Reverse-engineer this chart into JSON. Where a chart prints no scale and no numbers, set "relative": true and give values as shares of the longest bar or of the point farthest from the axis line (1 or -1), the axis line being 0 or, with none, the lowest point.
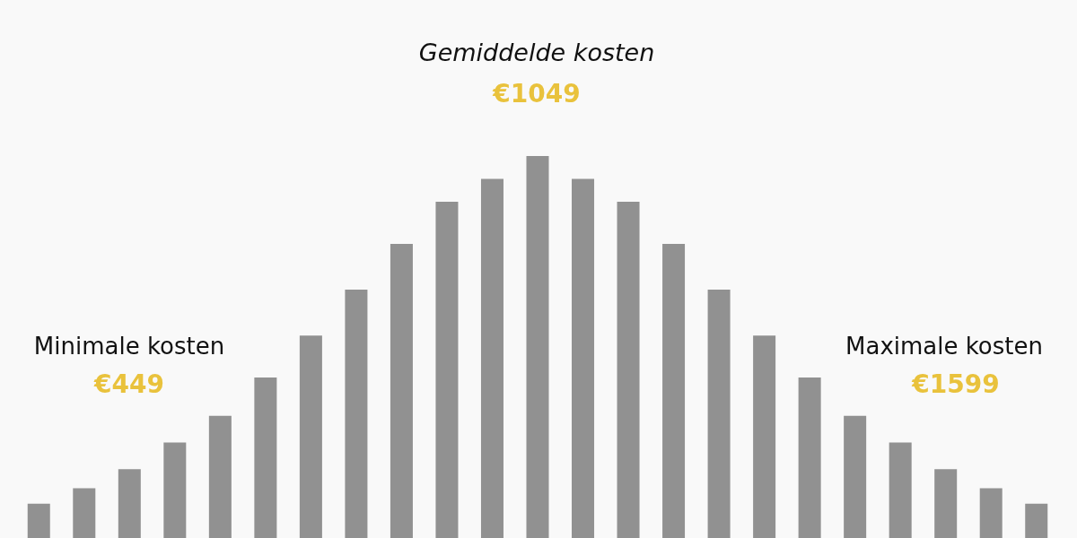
{
  "chart_data": {
    "type": "bar",
    "relative": true,
    "categories": [
      null,
      null,
      null,
      null,
      null,
      null,
      null,
      null,
      null,
      null,
      null,
      null,
      null,
      null,
      null,
      null,
      null,
      null,
      null,
      null,
      null,
      null,
      null
    ],
    "values": [
      0.09,
      0.13,
      0.18,
      0.25,
      0.32,
      0.42,
      0.53,
      0.65,
      0.77,
      0.88,
      0.94,
      1,
      0.94,
      0.88,
      0.77,
      0.65,
      0.53,
      0.42,
      0.32,
      0.25,
      0.18,
      0.13,
      0.09
    ],
    "color": "#919191",
    "annotations": [
      "Gemiddelde kosten",
      "€1049",
      "Minimale kosten",
      "€449",
      "Maximale kosten",
      "€1599"
    ]
  }
}
